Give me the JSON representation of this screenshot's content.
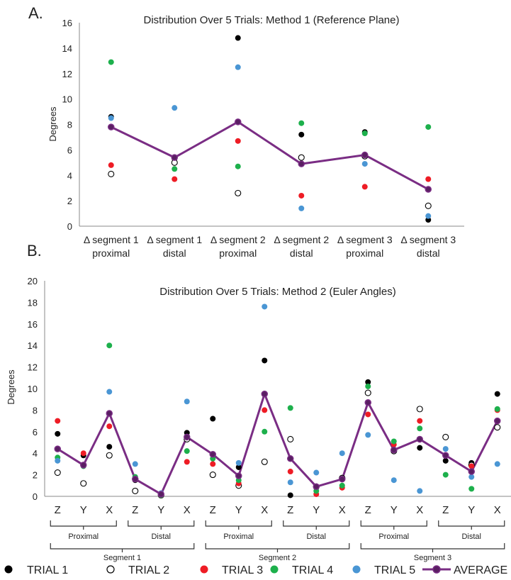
{
  "panel_labels": [
    "A.",
    "B."
  ],
  "legend": {
    "trial1": "TRIAL 1",
    "trial2": "TRIAL 2",
    "trial3": "TRIAL 3",
    "trial4": "TRIAL 4",
    "trial5": "TRIAL 5",
    "average": "AVERAGE"
  },
  "colors": {
    "trial1": "#000000",
    "trial2": "#ffffff",
    "trial3": "#ee1c25",
    "trial4": "#1db04c",
    "trial5": "#4a96d4",
    "average": "#7a2d84",
    "average_marker": "#5a1f63"
  },
  "chart_data": [
    {
      "type": "scatter",
      "title": "Distribution Over 5 Trials: Method 1 (Reference Plane)",
      "ylabel": "Degrees",
      "xlabel": "",
      "ylim": [
        0,
        16
      ],
      "yticks": [
        "0",
        "2",
        "4",
        "6",
        "8",
        "10",
        "12",
        "14",
        "16"
      ],
      "categories": [
        [
          "Δ segment 1",
          "proximal"
        ],
        [
          "Δ segment 1",
          "distal"
        ],
        [
          "Δ segment 2",
          "proximal"
        ],
        [
          "Δ segment 2",
          "distal"
        ],
        [
          "Δ segment 3",
          "proximal"
        ],
        [
          "Δ segment 3",
          "distal"
        ]
      ],
      "series": [
        {
          "name": "TRIAL 1",
          "values": [
            8.6,
            5.3,
            14.8,
            7.2,
            7.4,
            0.5
          ]
        },
        {
          "name": "TRIAL 2",
          "values": [
            4.1,
            5.0,
            2.6,
            5.4,
            5.5,
            1.6
          ]
        },
        {
          "name": "TRIAL 3",
          "values": [
            4.8,
            3.7,
            6.7,
            2.4,
            3.1,
            3.7
          ]
        },
        {
          "name": "TRIAL 4",
          "values": [
            12.9,
            4.5,
            4.7,
            8.1,
            7.3,
            7.8
          ]
        },
        {
          "name": "TRIAL 5",
          "values": [
            8.5,
            9.3,
            12.5,
            1.4,
            4.9,
            0.8
          ]
        },
        {
          "name": "AVERAGE",
          "values": [
            7.8,
            5.4,
            8.2,
            4.9,
            5.6,
            2.9
          ]
        }
      ],
      "grid": false,
      "legend": "bottom"
    },
    {
      "type": "scatter",
      "title": "Distribution Over 5 Trials: Method 2 (Euler Angles)",
      "ylabel": "Degrees",
      "xlabel": "",
      "ylim": [
        0,
        20
      ],
      "yticks": [
        "0",
        "2",
        "4",
        "6",
        "8",
        "10",
        "12",
        "14",
        "16",
        "18",
        "20"
      ],
      "categories": [
        "Z",
        "Y",
        "X",
        "Z",
        "Y",
        "X",
        "Z",
        "Y",
        "X",
        "Z",
        "Y",
        "X",
        "Z",
        "Y",
        "X",
        "Z",
        "Y",
        "X"
      ],
      "groups_level1": [
        "Proximal",
        "Distal",
        "Proximal",
        "Distal",
        "Proximal",
        "Distal"
      ],
      "groups_level2": [
        "Segment 1",
        "Segment 2",
        "Segment 3"
      ],
      "series": [
        {
          "name": "TRIAL 1",
          "values": [
            5.8,
            3.8,
            4.6,
            1.5,
            0.1,
            5.9,
            7.2,
            2.7,
            12.6,
            0.1,
            0.8,
            1.6,
            10.6,
            4.2,
            4.5,
            3.3,
            3.1,
            9.5
          ]
        },
        {
          "name": "TRIAL 2",
          "values": [
            2.2,
            1.2,
            3.8,
            0.5,
            0.1,
            5.3,
            2.0,
            1.0,
            3.2,
            5.3,
            0.9,
            1.7,
            9.6,
            4.2,
            8.1,
            5.5,
            2.9,
            6.4
          ]
        },
        {
          "name": "TRIAL 3",
          "values": [
            7.0,
            4.0,
            6.5,
            1.6,
            0.1,
            3.2,
            3.0,
            1.2,
            8.0,
            2.3,
            0.2,
            0.8,
            7.6,
            4.8,
            7.0,
            3.8,
            2.8,
            8.0
          ]
        },
        {
          "name": "TRIAL 4",
          "values": [
            3.6,
            2.8,
            14.0,
            1.8,
            0.1,
            4.2,
            3.5,
            1.5,
            6.0,
            8.2,
            0.5,
            1.0,
            10.2,
            5.1,
            6.3,
            2.0,
            0.7,
            8.1
          ]
        },
        {
          "name": "TRIAL 5",
          "values": [
            3.3,
            2.9,
            9.7,
            3.0,
            0.3,
            8.8,
            3.9,
            3.1,
            17.6,
            1.3,
            2.2,
            4.0,
            5.7,
            1.5,
            0.5,
            4.4,
            1.8,
            3.0
          ]
        },
        {
          "name": "AVERAGE",
          "values": [
            4.4,
            2.9,
            7.7,
            1.6,
            0.2,
            5.5,
            3.9,
            1.9,
            9.5,
            3.5,
            0.9,
            1.6,
            8.7,
            4.3,
            5.3,
            3.8,
            2.3,
            7.0
          ]
        }
      ],
      "grid": false,
      "legend": "bottom"
    }
  ]
}
